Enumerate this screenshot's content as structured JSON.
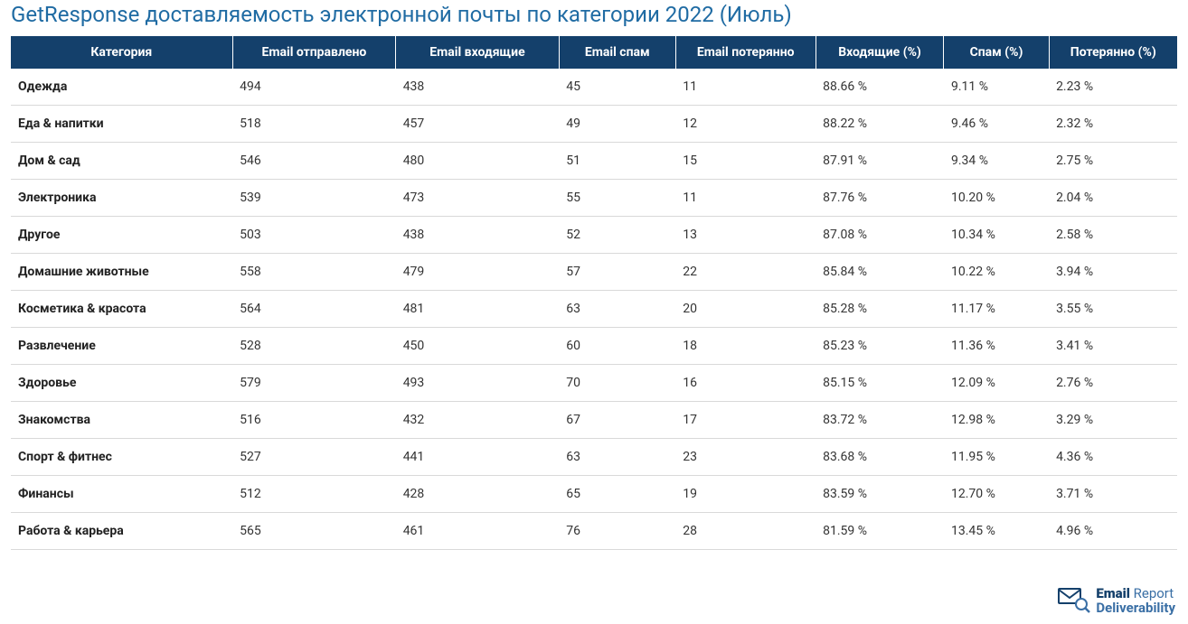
{
  "title": "GetResponse доставляемость электронной почты по категории 2022 (Июль)",
  "colors": {
    "title": "#1f6ba3",
    "header_bg": "#14406b",
    "header_text": "#ffffff",
    "row_border": "#d9d9d9",
    "cell_text": "#333333",
    "background": "#ffffff"
  },
  "table": {
    "type": "table",
    "columns": [
      "Категория",
      "Email отправлено",
      "Email входящие",
      "Email спам",
      "Email потерянно",
      "Входящие (%)",
      "Спам (%)",
      "Потерянно (%)"
    ],
    "rows": [
      {
        "c0": "Одежда",
        "c1": "494",
        "c2": "438",
        "c3": "45",
        "c4": "11",
        "c5": "88.66 %",
        "c6": "9.11 %",
        "c7": "2.23 %"
      },
      {
        "c0": "Еда & напитки",
        "c1": "518",
        "c2": "457",
        "c3": "49",
        "c4": "12",
        "c5": "88.22 %",
        "c6": "9.46 %",
        "c7": "2.32 %"
      },
      {
        "c0": "Дом & сад",
        "c1": "546",
        "c2": "480",
        "c3": "51",
        "c4": "15",
        "c5": "87.91 %",
        "c6": "9.34 %",
        "c7": "2.75 %"
      },
      {
        "c0": "Электроника",
        "c1": "539",
        "c2": "473",
        "c3": "55",
        "c4": "11",
        "c5": "87.76 %",
        "c6": "10.20 %",
        "c7": "2.04 %"
      },
      {
        "c0": "Другое",
        "c1": "503",
        "c2": "438",
        "c3": "52",
        "c4": "13",
        "c5": "87.08 %",
        "c6": "10.34 %",
        "c7": "2.58 %"
      },
      {
        "c0": "Домашние животные",
        "c1": "558",
        "c2": "479",
        "c3": "57",
        "c4": "22",
        "c5": "85.84 %",
        "c6": "10.22 %",
        "c7": "3.94 %"
      },
      {
        "c0": "Косметика & красота",
        "c1": "564",
        "c2": "481",
        "c3": "63",
        "c4": "20",
        "c5": "85.28 %",
        "c6": "11.17 %",
        "c7": "3.55 %"
      },
      {
        "c0": "Развлечение",
        "c1": "528",
        "c2": "450",
        "c3": "60",
        "c4": "18",
        "c5": "85.23 %",
        "c6": "11.36 %",
        "c7": "3.41 %"
      },
      {
        "c0": "Здоровье",
        "c1": "579",
        "c2": "493",
        "c3": "70",
        "c4": "16",
        "c5": "85.15 %",
        "c6": "12.09 %",
        "c7": "2.76 %"
      },
      {
        "c0": "Знакомства",
        "c1": "516",
        "c2": "432",
        "c3": "67",
        "c4": "17",
        "c5": "83.72 %",
        "c6": "12.98 %",
        "c7": "3.29 %"
      },
      {
        "c0": "Спорт & фитнес",
        "c1": "527",
        "c2": "441",
        "c3": "63",
        "c4": "23",
        "c5": "83.68 %",
        "c6": "11.95 %",
        "c7": "4.36 %"
      },
      {
        "c0": "Финансы",
        "c1": "512",
        "c2": "428",
        "c3": "65",
        "c4": "19",
        "c5": "83.59 %",
        "c6": "12.70 %",
        "c7": "3.71 %"
      },
      {
        "c0": "Работа & карьера",
        "c1": "565",
        "c2": "461",
        "c3": "76",
        "c4": "28",
        "c5": "81.59 %",
        "c6": "13.45 %",
        "c7": "4.96 %"
      }
    ]
  },
  "logo": {
    "line1_a": "Email",
    "line1_b": "Report",
    "line2": "Deliverability",
    "icon_color_dark": "#14406b",
    "icon_color_light": "#3a6fa5"
  }
}
